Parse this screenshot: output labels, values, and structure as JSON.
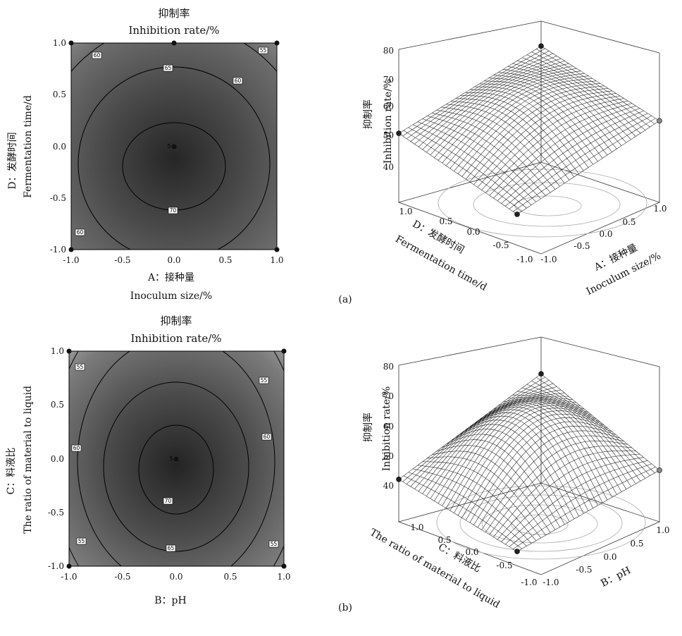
{
  "panel_labels": [
    "(a)",
    "(b)"
  ],
  "chart_data": [
    {
      "type": "contour",
      "title_cn": "抑制率",
      "title_en": "Inhibition rate/%",
      "xlabel": "A：接种量 Inoculum size/%",
      "xlabel_cn": "A：接种量",
      "xlabel_en": "Inoculum size/%",
      "ylabel_cn": "D：发酵时间",
      "ylabel_en": "Fermentation time/d",
      "xlim": [
        -1.0,
        1.0
      ],
      "ylim": [
        -1.0,
        1.0
      ],
      "xticks": [
        "-1.0",
        "-0.5",
        "0.0",
        "0.5",
        "1.0"
      ],
      "yticks": [
        "-1.0",
        "-0.5",
        "0.0",
        "0.5",
        "1.0"
      ],
      "contour_levels": [
        55,
        60,
        65,
        70
      ],
      "contour_labels": [
        "60",
        "55",
        "65",
        "60",
        "5",
        "70",
        "60"
      ],
      "design_points": [
        [
          -1,
          1
        ],
        [
          0,
          1
        ],
        [
          1,
          1
        ],
        [
          0,
          0
        ],
        [
          -1,
          -1
        ],
        [
          1,
          -1
        ]
      ],
      "center": [
        0.0,
        -0.15
      ]
    },
    {
      "type": "surface3d",
      "zlabel_cn": "抑制率",
      "zlabel_en": "Inhibition rate/%",
      "zticks": [
        "40",
        "50",
        "60",
        "70",
        "80"
      ],
      "zlim": [
        35,
        80
      ],
      "xlabel_cn": "A：接种量",
      "xlabel_en": "Inoculum size/%",
      "ylabel_cn": "D：发酵时间",
      "ylabel_en": "Fermentation time/d",
      "xticks": [
        "-1.0",
        "-0.5",
        "0.0",
        "0.5",
        "1.0"
      ],
      "yticks": [
        "-1.0",
        "-0.5",
        "0.0",
        "0.5",
        "1.0"
      ],
      "points": [
        {
          "x": 1,
          "y": 1,
          "z": 72
        },
        {
          "x": -1,
          "y": 1,
          "z": 57
        },
        {
          "x": 1,
          "y": -1,
          "z": 61
        },
        {
          "x": -1,
          "y": -1,
          "z": 44
        }
      ]
    },
    {
      "type": "contour",
      "title_cn": "抑制率",
      "title_en": "Inhibition rate/%",
      "xlabel_cn": "B：pH",
      "ylabel_cn": "C：料液比",
      "ylabel_en": "The ratio of material to liquid",
      "xlim": [
        -1.0,
        1.0
      ],
      "ylim": [
        -1.0,
        1.0
      ],
      "xticks": [
        "-1.0",
        "-0.5",
        "0.0",
        "0.5",
        "1.0"
      ],
      "yticks": [
        "-1.0",
        "-0.5",
        "0.0",
        "0.5",
        "1.0"
      ],
      "contour_levels": [
        55,
        60,
        65,
        70
      ],
      "contour_labels": [
        "55",
        "55",
        "60",
        "60",
        "5",
        "70",
        "55",
        "65",
        "55"
      ],
      "design_points": [
        [
          -1,
          1
        ],
        [
          1,
          1
        ],
        [
          0,
          0
        ],
        [
          -1,
          -1
        ],
        [
          1,
          -1
        ]
      ],
      "center": [
        0.0,
        -0.1
      ]
    },
    {
      "type": "surface3d",
      "zlabel_cn": "抑制率",
      "zlabel_en": "Inhibition rate/%",
      "zticks": [
        "40",
        "50",
        "60",
        "70",
        "80"
      ],
      "zlim": [
        35,
        80
      ],
      "xlabel_cn": "B：pH",
      "ylabel_cn": "C：料液比",
      "ylabel_en": "The ratio of material to liquid",
      "xticks": [
        "-1.0",
        "-0.5",
        "0.0",
        "0.5",
        "1.0"
      ],
      "yticks": [
        "-1.0",
        "-0.5",
        "0.0",
        "0.5",
        "1.0"
      ],
      "points": [
        {
          "x": 1,
          "y": 1,
          "z": 71
        },
        {
          "x": -1,
          "y": 1,
          "z": 49
        },
        {
          "x": 1,
          "y": -1,
          "z": 52
        },
        {
          "x": -1,
          "y": -1,
          "z": 38
        }
      ]
    }
  ]
}
